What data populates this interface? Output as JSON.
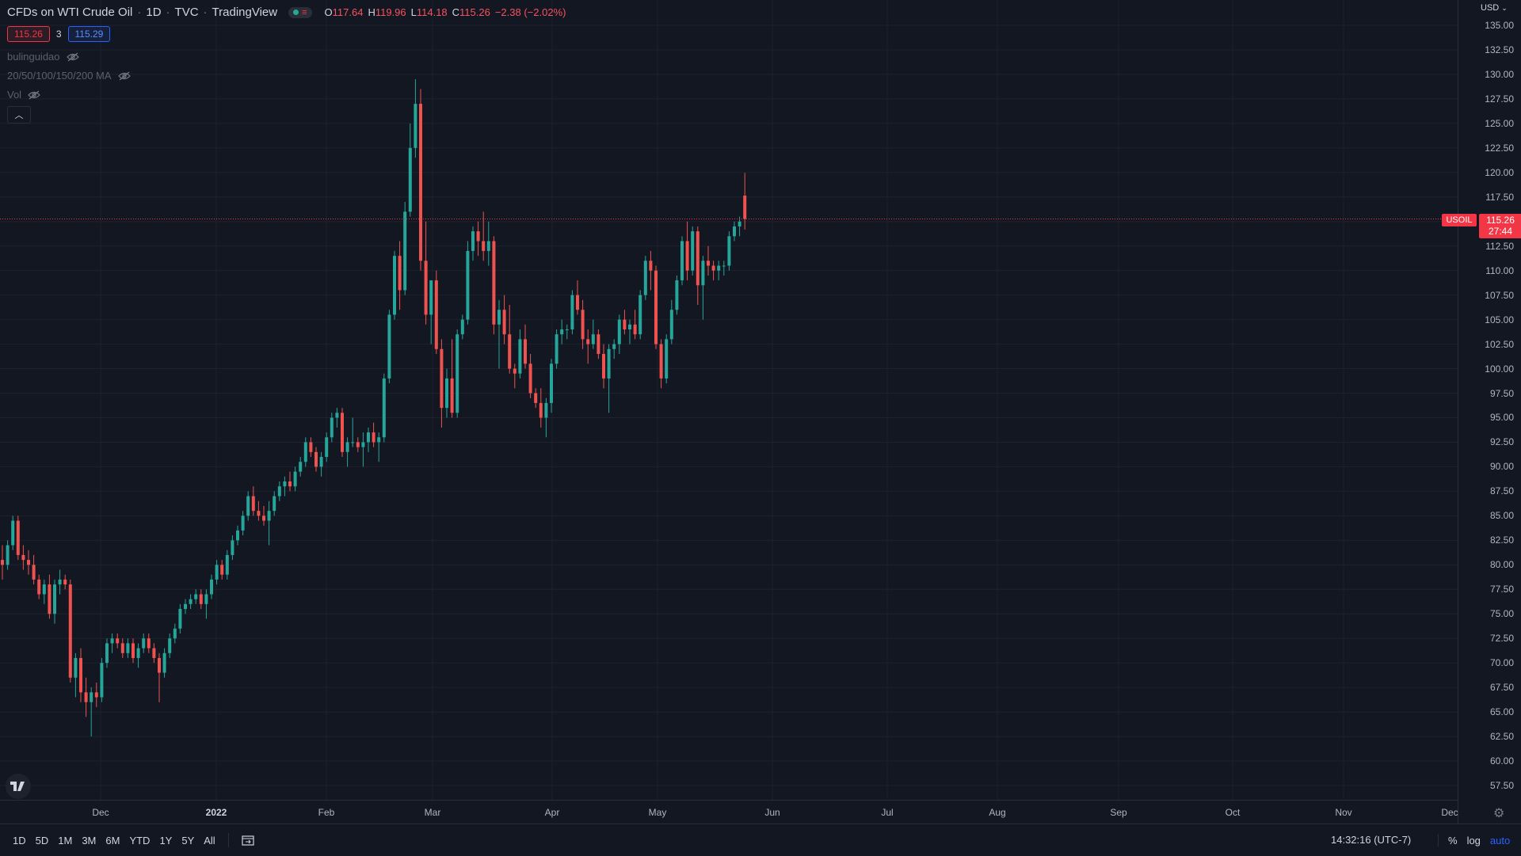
{
  "header": {
    "title": "CFDs on WTI Crude Oil",
    "interval": "1D",
    "exchange": "TVC",
    "source": "TradingView",
    "ohlc": {
      "o_label": "O",
      "o": "117.64",
      "h_label": "H",
      "h": "119.96",
      "l_label": "L",
      "l": "114.18",
      "c_label": "C",
      "c": "115.26",
      "change": "−2.38 (−2.02%)"
    }
  },
  "quote": {
    "sell": "115.26",
    "spread": "3",
    "buy": "115.29"
  },
  "indicators": [
    {
      "label": "bulinguidao"
    },
    {
      "label": "20/50/100/150/200 MA"
    },
    {
      "label": "Vol"
    }
  ],
  "price_axis": {
    "currency": "USD",
    "labels": [
      "135.00",
      "132.50",
      "130.00",
      "127.50",
      "125.00",
      "122.50",
      "120.00",
      "117.50",
      "115.00",
      "112.50",
      "110.00",
      "107.50",
      "105.00",
      "102.50",
      "100.00",
      "97.50",
      "95.00",
      "92.50",
      "90.00",
      "87.50",
      "85.00",
      "82.50",
      "80.00",
      "77.50",
      "75.00",
      "72.50",
      "70.00",
      "67.50",
      "65.00",
      "62.50",
      "60.00",
      "57.50"
    ],
    "last_price": "115.26",
    "countdown": "27:44",
    "symbol": "USOIL"
  },
  "time_axis": {
    "labels": [
      {
        "text": "Dec",
        "year": false
      },
      {
        "text": "2022",
        "year": true
      },
      {
        "text": "Feb",
        "year": false
      },
      {
        "text": "Mar",
        "year": false
      },
      {
        "text": "Apr",
        "year": false
      },
      {
        "text": "May",
        "year": false
      },
      {
        "text": "Jun",
        "year": false
      },
      {
        "text": "Jul",
        "year": false
      },
      {
        "text": "Aug",
        "year": false
      },
      {
        "text": "Sep",
        "year": false
      },
      {
        "text": "Oct",
        "year": false
      },
      {
        "text": "Nov",
        "year": false
      },
      {
        "text": "Dec",
        "year": false
      }
    ]
  },
  "bottom_bar": {
    "ranges": [
      "1D",
      "5D",
      "1M",
      "3M",
      "6M",
      "YTD",
      "1Y",
      "5Y",
      "All"
    ],
    "clock": "14:32:16 (UTC-7)",
    "percent": "%",
    "log": "log",
    "auto": "auto"
  },
  "colors": {
    "up": "#26a69a",
    "down": "#ef5350",
    "background": "#131722",
    "grid": "#1e222d",
    "accent": "#2962ff"
  },
  "chart_data": {
    "type": "candlestick",
    "series": [
      {
        "name": "USOIL",
        "ohlc": [
          [
            80.5,
            82.0,
            78.5,
            80.0
          ],
          [
            80.0,
            82.5,
            79.5,
            82.0
          ],
          [
            82.0,
            85.0,
            81.5,
            84.5
          ],
          [
            84.5,
            85.0,
            80.5,
            81.0
          ],
          [
            81.0,
            82.0,
            79.5,
            80.5
          ],
          [
            80.5,
            81.5,
            79.0,
            80.0
          ],
          [
            80.0,
            81.0,
            78.0,
            78.5
          ],
          [
            78.5,
            79.0,
            76.5,
            77.0
          ],
          [
            77.0,
            78.5,
            76.0,
            78.0
          ],
          [
            78.0,
            79.0,
            74.5,
            75.0
          ],
          [
            75.0,
            78.5,
            74.0,
            78.0
          ],
          [
            78.0,
            79.5,
            77.0,
            78.5
          ],
          [
            78.5,
            79.0,
            77.5,
            78.0
          ],
          [
            78.0,
            78.5,
            68.0,
            68.5
          ],
          [
            68.5,
            71.0,
            66.5,
            70.5
          ],
          [
            70.5,
            71.5,
            66.0,
            67.0
          ],
          [
            67.0,
            68.5,
            64.5,
            66.0
          ],
          [
            66.0,
            67.5,
            62.5,
            67.0
          ],
          [
            67.0,
            68.0,
            65.5,
            66.5
          ],
          [
            66.5,
            70.5,
            66.0,
            70.0
          ],
          [
            70.0,
            72.5,
            69.5,
            72.0
          ],
          [
            72.0,
            73.0,
            71.0,
            72.5
          ],
          [
            72.5,
            73.0,
            71.5,
            72.0
          ],
          [
            72.0,
            72.5,
            70.5,
            71.0
          ],
          [
            71.0,
            72.5,
            70.5,
            72.0
          ],
          [
            72.0,
            72.5,
            70.0,
            70.5
          ],
          [
            70.5,
            72.0,
            69.5,
            71.5
          ],
          [
            71.5,
            73.0,
            71.0,
            72.5
          ],
          [
            72.5,
            73.0,
            71.0,
            71.5
          ],
          [
            71.5,
            72.0,
            70.0,
            70.5
          ],
          [
            70.5,
            71.0,
            66.0,
            69.0
          ],
          [
            69.0,
            71.5,
            68.5,
            71.0
          ],
          [
            71.0,
            73.0,
            70.5,
            72.5
          ],
          [
            72.5,
            74.0,
            72.0,
            73.5
          ],
          [
            73.5,
            76.0,
            73.0,
            75.5
          ],
          [
            75.5,
            76.5,
            75.0,
            76.0
          ],
          [
            76.0,
            77.0,
            75.5,
            76.5
          ],
          [
            76.5,
            77.5,
            76.0,
            77.0
          ],
          [
            77.0,
            77.5,
            75.5,
            76.0
          ],
          [
            76.0,
            77.5,
            74.5,
            77.0
          ],
          [
            77.0,
            79.0,
            76.5,
            78.5
          ],
          [
            78.5,
            80.5,
            78.0,
            80.0
          ],
          [
            80.0,
            80.5,
            78.5,
            79.0
          ],
          [
            79.0,
            81.5,
            78.5,
            81.0
          ],
          [
            81.0,
            83.0,
            80.5,
            82.5
          ],
          [
            82.5,
            84.0,
            82.0,
            83.5
          ],
          [
            83.5,
            85.5,
            83.0,
            85.0
          ],
          [
            85.0,
            87.5,
            84.5,
            87.0
          ],
          [
            87.0,
            88.0,
            85.0,
            85.5
          ],
          [
            85.5,
            86.5,
            84.5,
            85.0
          ],
          [
            85.0,
            86.0,
            84.0,
            84.5
          ],
          [
            84.5,
            86.5,
            82.0,
            85.5
          ],
          [
            85.5,
            87.5,
            85.0,
            87.0
          ],
          [
            87.0,
            88.5,
            86.5,
            88.0
          ],
          [
            88.0,
            89.0,
            87.0,
            88.5
          ],
          [
            88.5,
            89.5,
            87.5,
            88.0
          ],
          [
            88.0,
            90.0,
            87.5,
            89.5
          ],
          [
            89.5,
            91.0,
            89.0,
            90.5
          ],
          [
            90.5,
            93.0,
            90.0,
            92.5
          ],
          [
            92.5,
            93.0,
            91.0,
            91.5
          ],
          [
            91.5,
            92.0,
            89.5,
            90.0
          ],
          [
            90.0,
            91.5,
            89.0,
            91.0
          ],
          [
            91.0,
            93.5,
            90.5,
            93.0
          ],
          [
            93.0,
            95.5,
            92.5,
            95.0
          ],
          [
            95.0,
            96.0,
            94.0,
            95.5
          ],
          [
            95.5,
            96.0,
            91.0,
            91.5
          ],
          [
            91.5,
            93.0,
            90.0,
            92.5
          ],
          [
            92.5,
            95.0,
            92.0,
            92.5
          ],
          [
            92.5,
            93.0,
            91.5,
            92.0
          ],
          [
            92.0,
            93.5,
            90.0,
            92.5
          ],
          [
            92.5,
            94.0,
            91.5,
            93.5
          ],
          [
            93.5,
            94.5,
            92.0,
            92.5
          ],
          [
            92.5,
            93.5,
            90.5,
            93.0
          ],
          [
            93.0,
            99.5,
            92.5,
            99.0
          ],
          [
            99.0,
            106.0,
            98.5,
            105.5
          ],
          [
            105.5,
            112.0,
            105.0,
            111.5
          ],
          [
            111.5,
            113.0,
            106.0,
            108.0
          ],
          [
            108.0,
            117.0,
            107.5,
            116.0
          ],
          [
            116.0,
            125.0,
            115.5,
            122.5
          ],
          [
            122.5,
            129.5,
            121.5,
            127.0
          ],
          [
            127.0,
            128.5,
            110.0,
            111.0
          ],
          [
            111.0,
            115.0,
            104.5,
            105.5
          ],
          [
            105.5,
            109.0,
            102.5,
            109.0
          ],
          [
            109.0,
            110.0,
            101.5,
            102.0
          ],
          [
            102.0,
            103.0,
            94.0,
            96.0
          ],
          [
            96.0,
            100.0,
            95.0,
            99.0
          ],
          [
            99.0,
            103.0,
            95.0,
            95.5
          ],
          [
            95.5,
            104.0,
            95.0,
            103.5
          ],
          [
            103.5,
            105.5,
            103.0,
            105.0
          ],
          [
            105.0,
            113.0,
            104.5,
            112.0
          ],
          [
            112.0,
            114.5,
            111.0,
            114.0
          ],
          [
            114.0,
            115.0,
            111.5,
            113.0
          ],
          [
            113.0,
            116.0,
            111.0,
            112.0
          ],
          [
            112.0,
            115.0,
            110.5,
            113.0
          ],
          [
            113.0,
            113.5,
            103.5,
            104.5
          ],
          [
            104.5,
            107.0,
            100.0,
            106.0
          ],
          [
            106.0,
            107.5,
            102.5,
            103.5
          ],
          [
            103.5,
            106.5,
            99.5,
            100.0
          ],
          [
            100.0,
            100.5,
            98.0,
            99.5
          ],
          [
            99.5,
            104.0,
            99.0,
            103.0
          ],
          [
            103.0,
            104.5,
            100.0,
            100.5
          ],
          [
            100.5,
            101.5,
            97.0,
            97.5
          ],
          [
            97.5,
            98.0,
            96.0,
            96.5
          ],
          [
            96.5,
            98.0,
            94.0,
            95.0
          ],
          [
            95.0,
            97.0,
            93.0,
            96.5
          ],
          [
            96.5,
            101.0,
            95.5,
            100.5
          ],
          [
            100.5,
            104.0,
            100.0,
            103.5
          ],
          [
            103.5,
            105.0,
            102.5,
            104.0
          ],
          [
            104.0,
            104.5,
            103.0,
            104.0
          ],
          [
            104.0,
            108.0,
            103.5,
            107.5
          ],
          [
            107.5,
            109.0,
            105.5,
            106.0
          ],
          [
            106.0,
            107.0,
            102.0,
            103.0
          ],
          [
            103.0,
            104.0,
            100.5,
            102.5
          ],
          [
            102.5,
            105.0,
            102.0,
            103.5
          ],
          [
            103.5,
            104.0,
            101.0,
            101.5
          ],
          [
            101.5,
            102.5,
            98.0,
            99.0
          ],
          [
            99.0,
            102.5,
            95.5,
            102.0
          ],
          [
            102.0,
            103.0,
            101.0,
            102.5
          ],
          [
            102.5,
            105.5,
            101.5,
            105.0
          ],
          [
            105.0,
            106.0,
            103.5,
            104.0
          ],
          [
            104.0,
            105.0,
            102.5,
            104.5
          ],
          [
            104.5,
            106.0,
            103.0,
            103.5
          ],
          [
            103.5,
            108.0,
            103.0,
            107.5
          ],
          [
            107.5,
            111.5,
            107.0,
            111.0
          ],
          [
            111.0,
            112.0,
            108.0,
            110.0
          ],
          [
            110.0,
            110.5,
            102.0,
            102.5
          ],
          [
            102.5,
            103.0,
            98.0,
            99.0
          ],
          [
            99.0,
            103.5,
            98.5,
            103.0
          ],
          [
            103.0,
            107.0,
            102.5,
            106.0
          ],
          [
            106.0,
            109.5,
            105.5,
            109.0
          ],
          [
            109.0,
            113.5,
            108.5,
            113.0
          ],
          [
            113.0,
            115.0,
            109.0,
            110.0
          ],
          [
            110.0,
            114.5,
            109.5,
            114.0
          ],
          [
            114.0,
            114.5,
            106.5,
            108.5
          ],
          [
            108.5,
            111.5,
            105.0,
            111.0
          ],
          [
            111.0,
            112.5,
            109.5,
            110.5
          ],
          [
            110.5,
            111.0,
            109.0,
            110.0
          ],
          [
            110.0,
            111.0,
            109.0,
            110.5
          ],
          [
            110.5,
            111.0,
            109.5,
            110.5
          ],
          [
            110.5,
            114.0,
            110.0,
            113.5
          ],
          [
            113.5,
            115.0,
            113.0,
            114.5
          ],
          [
            114.5,
            115.5,
            113.5,
            115.0
          ],
          [
            117.64,
            119.96,
            114.18,
            115.26
          ]
        ]
      }
    ],
    "ylim": [
      56.5,
      136
    ],
    "last": 115.26
  }
}
